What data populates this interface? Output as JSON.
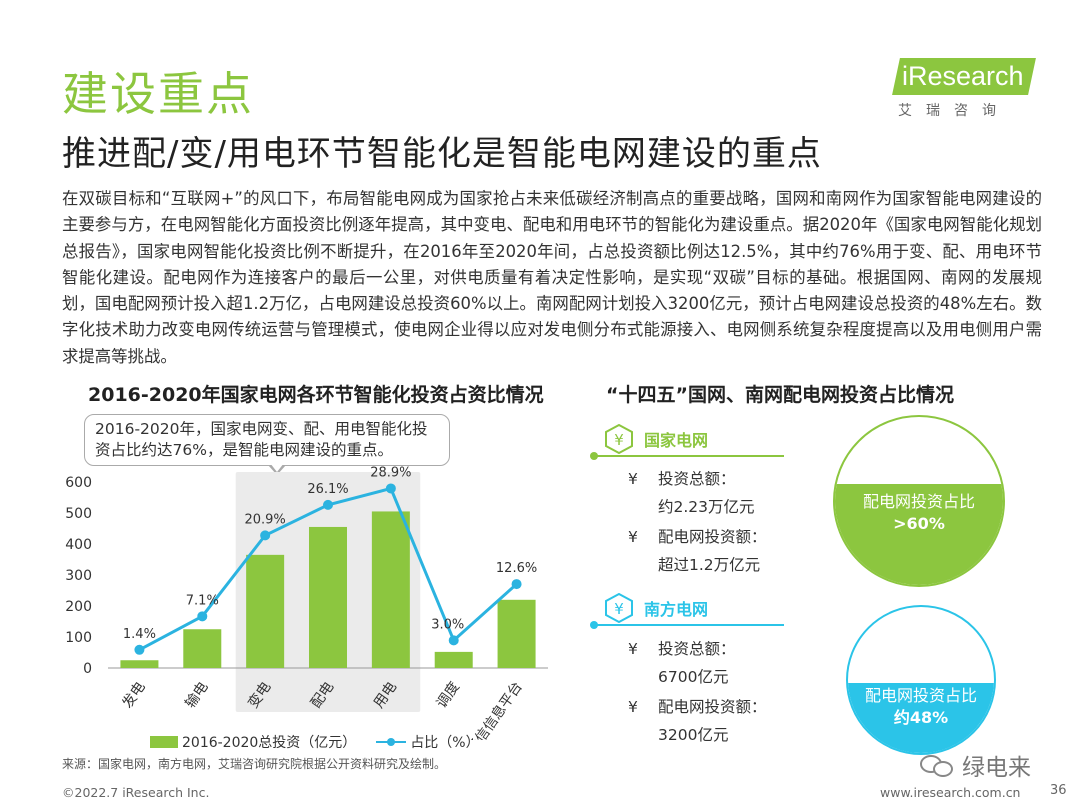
{
  "header": {
    "section_title": "建设重点",
    "main_heading": "推进配/变/用电环节智能化是智能电网建设的重点",
    "logo_word": "iResearch",
    "logo_sub": "艾瑞咨询"
  },
  "paragraph": "在双碳目标和“互联网+”的风口下，布局智能电网成为国家抢占未来低碳经济制高点的重要战略，国网和南网作为国家智能电网建设的主要参与方，在电网智能化方面投资比例逐年提高，其中变电、配电和用电环节的智能化为建设重点。据2020年《国家电网智能化规划总报告》，国家电网智能化投资比例不断提升，在2016年至2020年间，占总投资额比例达12.5%，其中约76%用于变、配、用电环节智能化建设。配电网作为连接客户的最后一公里，对供电质量有着决定性影响，是实现“双碳”目标的基础。根据国网、南网的发展规划，国电配网预计投入超1.2万亿，占电网建设总投资60%以上。南网配网计划投入3200亿元，预计占电网建设总投资的48%左右。数字化技术助力改变电网传统运营与管理模式，使电网企业得以应对发电侧分布式能源接入、电网侧系统复杂程度提高以及用电侧用户需求提高等挑战。",
  "chart": {
    "title": "2016-2020年国家电网各环节智能化投资占资比情况",
    "callout": "2016-2020年，国家电网变、配、用电智能化投资占比约达76%，是智能电网建设的重点。"
  },
  "chart_data": {
    "type": "bar",
    "title": "2016-2020年国家电网各环节智能化投资占资比情况",
    "categories": [
      "发电",
      "输电",
      "变电",
      "配电",
      "用电",
      "调度",
      "通信信息平台"
    ],
    "series": [
      {
        "name": "2016-2020总投资（亿元）",
        "type": "bar",
        "values": [
          25,
          125,
          365,
          455,
          505,
          52,
          220
        ]
      },
      {
        "name": "占比（%）",
        "type": "line",
        "values": [
          1.4,
          7.1,
          20.9,
          26.1,
          28.9,
          3.0,
          12.6
        ],
        "labels": [
          "1.4%",
          "7.1%",
          "20.9%",
          "26.1%",
          "28.9%",
          "3.0%",
          "12.6%"
        ]
      }
    ],
    "yticks": [
      "0",
      "100",
      "200",
      "300",
      "400",
      "500",
      "600"
    ],
    "ylim": [
      0,
      600
    ],
    "highlight_categories": [
      "变电",
      "配电",
      "用电"
    ],
    "legend": "bottom",
    "grid": false,
    "colors": {
      "bar": "#8cc63f",
      "line": "#2bb3e0",
      "highlight": "#ebebeb"
    }
  },
  "right": {
    "title": "“十四五”国网、南网配电网投资占比情况",
    "state_grid": {
      "name": "国家电网",
      "yen": "¥",
      "total_label": "投资总额：",
      "total_value": "约2.23万亿元",
      "dist_label": "配电网投资额：",
      "dist_value": "超过1.2万亿元",
      "circle_line1": "配电网投资占比",
      "circle_line2": ">60%",
      "share": 0.6,
      "color": "#8cc63f"
    },
    "southern_grid": {
      "name": "南方电网",
      "yen": "¥",
      "total_label": "投资总额：",
      "total_value": "6700亿元",
      "dist_label": "配电网投资额：",
      "dist_value": "3200亿元",
      "circle_line1": "配电网投资占比",
      "circle_line2": "约48%",
      "share": 0.48,
      "color": "#2bc4e8"
    }
  },
  "footer": {
    "source": "来源：国家电网，南方电网，艾瑞咨询研究院根据公开资料研究及绘制。",
    "copyright": "©2022.7 iResearch Inc.",
    "website": "www.iresearch.com.cn",
    "page": "36",
    "watermark": "绿电来"
  }
}
